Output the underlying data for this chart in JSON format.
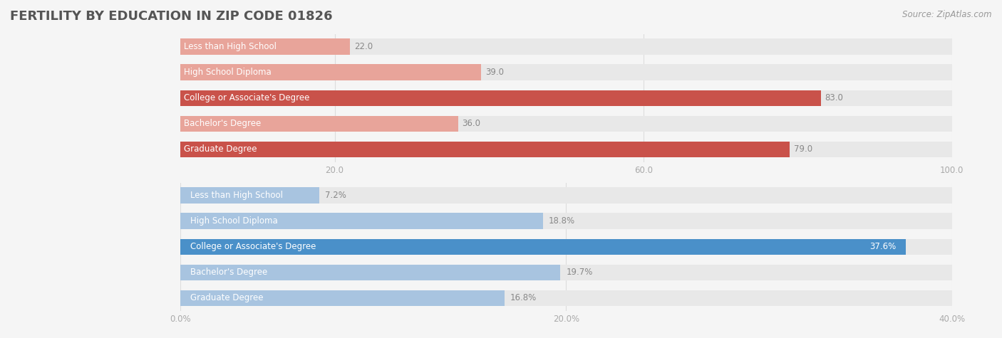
{
  "title": "FERTILITY BY EDUCATION IN ZIP CODE 01826",
  "source": "Source: ZipAtlas.com",
  "top_section": {
    "categories": [
      "Less than High School",
      "High School Diploma",
      "College or Associate's Degree",
      "Bachelor's Degree",
      "Graduate Degree"
    ],
    "values": [
      22.0,
      39.0,
      83.0,
      36.0,
      79.0
    ],
    "xlim": [
      0,
      100
    ],
    "xticks": [
      20.0,
      60.0,
      100.0
    ],
    "colors": [
      "#e8a49a",
      "#e8a49a",
      "#c9524a",
      "#e8a49a",
      "#c9524a"
    ]
  },
  "bottom_section": {
    "categories": [
      "Less than High School",
      "High School Diploma",
      "College or Associate's Degree",
      "Bachelor's Degree",
      "Graduate Degree"
    ],
    "values": [
      7.2,
      18.8,
      37.6,
      19.7,
      16.8
    ],
    "xlim": [
      0,
      40
    ],
    "xticks": [
      0.0,
      20.0,
      40.0
    ],
    "xticklabels": [
      "0.0%",
      "20.0%",
      "40.0%"
    ],
    "colors": [
      "#a8c4e0",
      "#a8c4e0",
      "#4a90c9",
      "#a8c4e0",
      "#a8c4e0"
    ]
  },
  "bar_height": 0.62,
  "title_fontsize": 13,
  "label_fontsize": 8.5,
  "value_fontsize": 8.5,
  "tick_fontsize": 8.5,
  "source_fontsize": 8.5,
  "bg_color": "#f5f5f5",
  "bar_bg_color": "#e8e8e8",
  "title_color": "#555555",
  "source_color": "#999999",
  "tick_color": "#aaaaaa",
  "grid_color": "#dddddd",
  "value_label_color": "#888888"
}
